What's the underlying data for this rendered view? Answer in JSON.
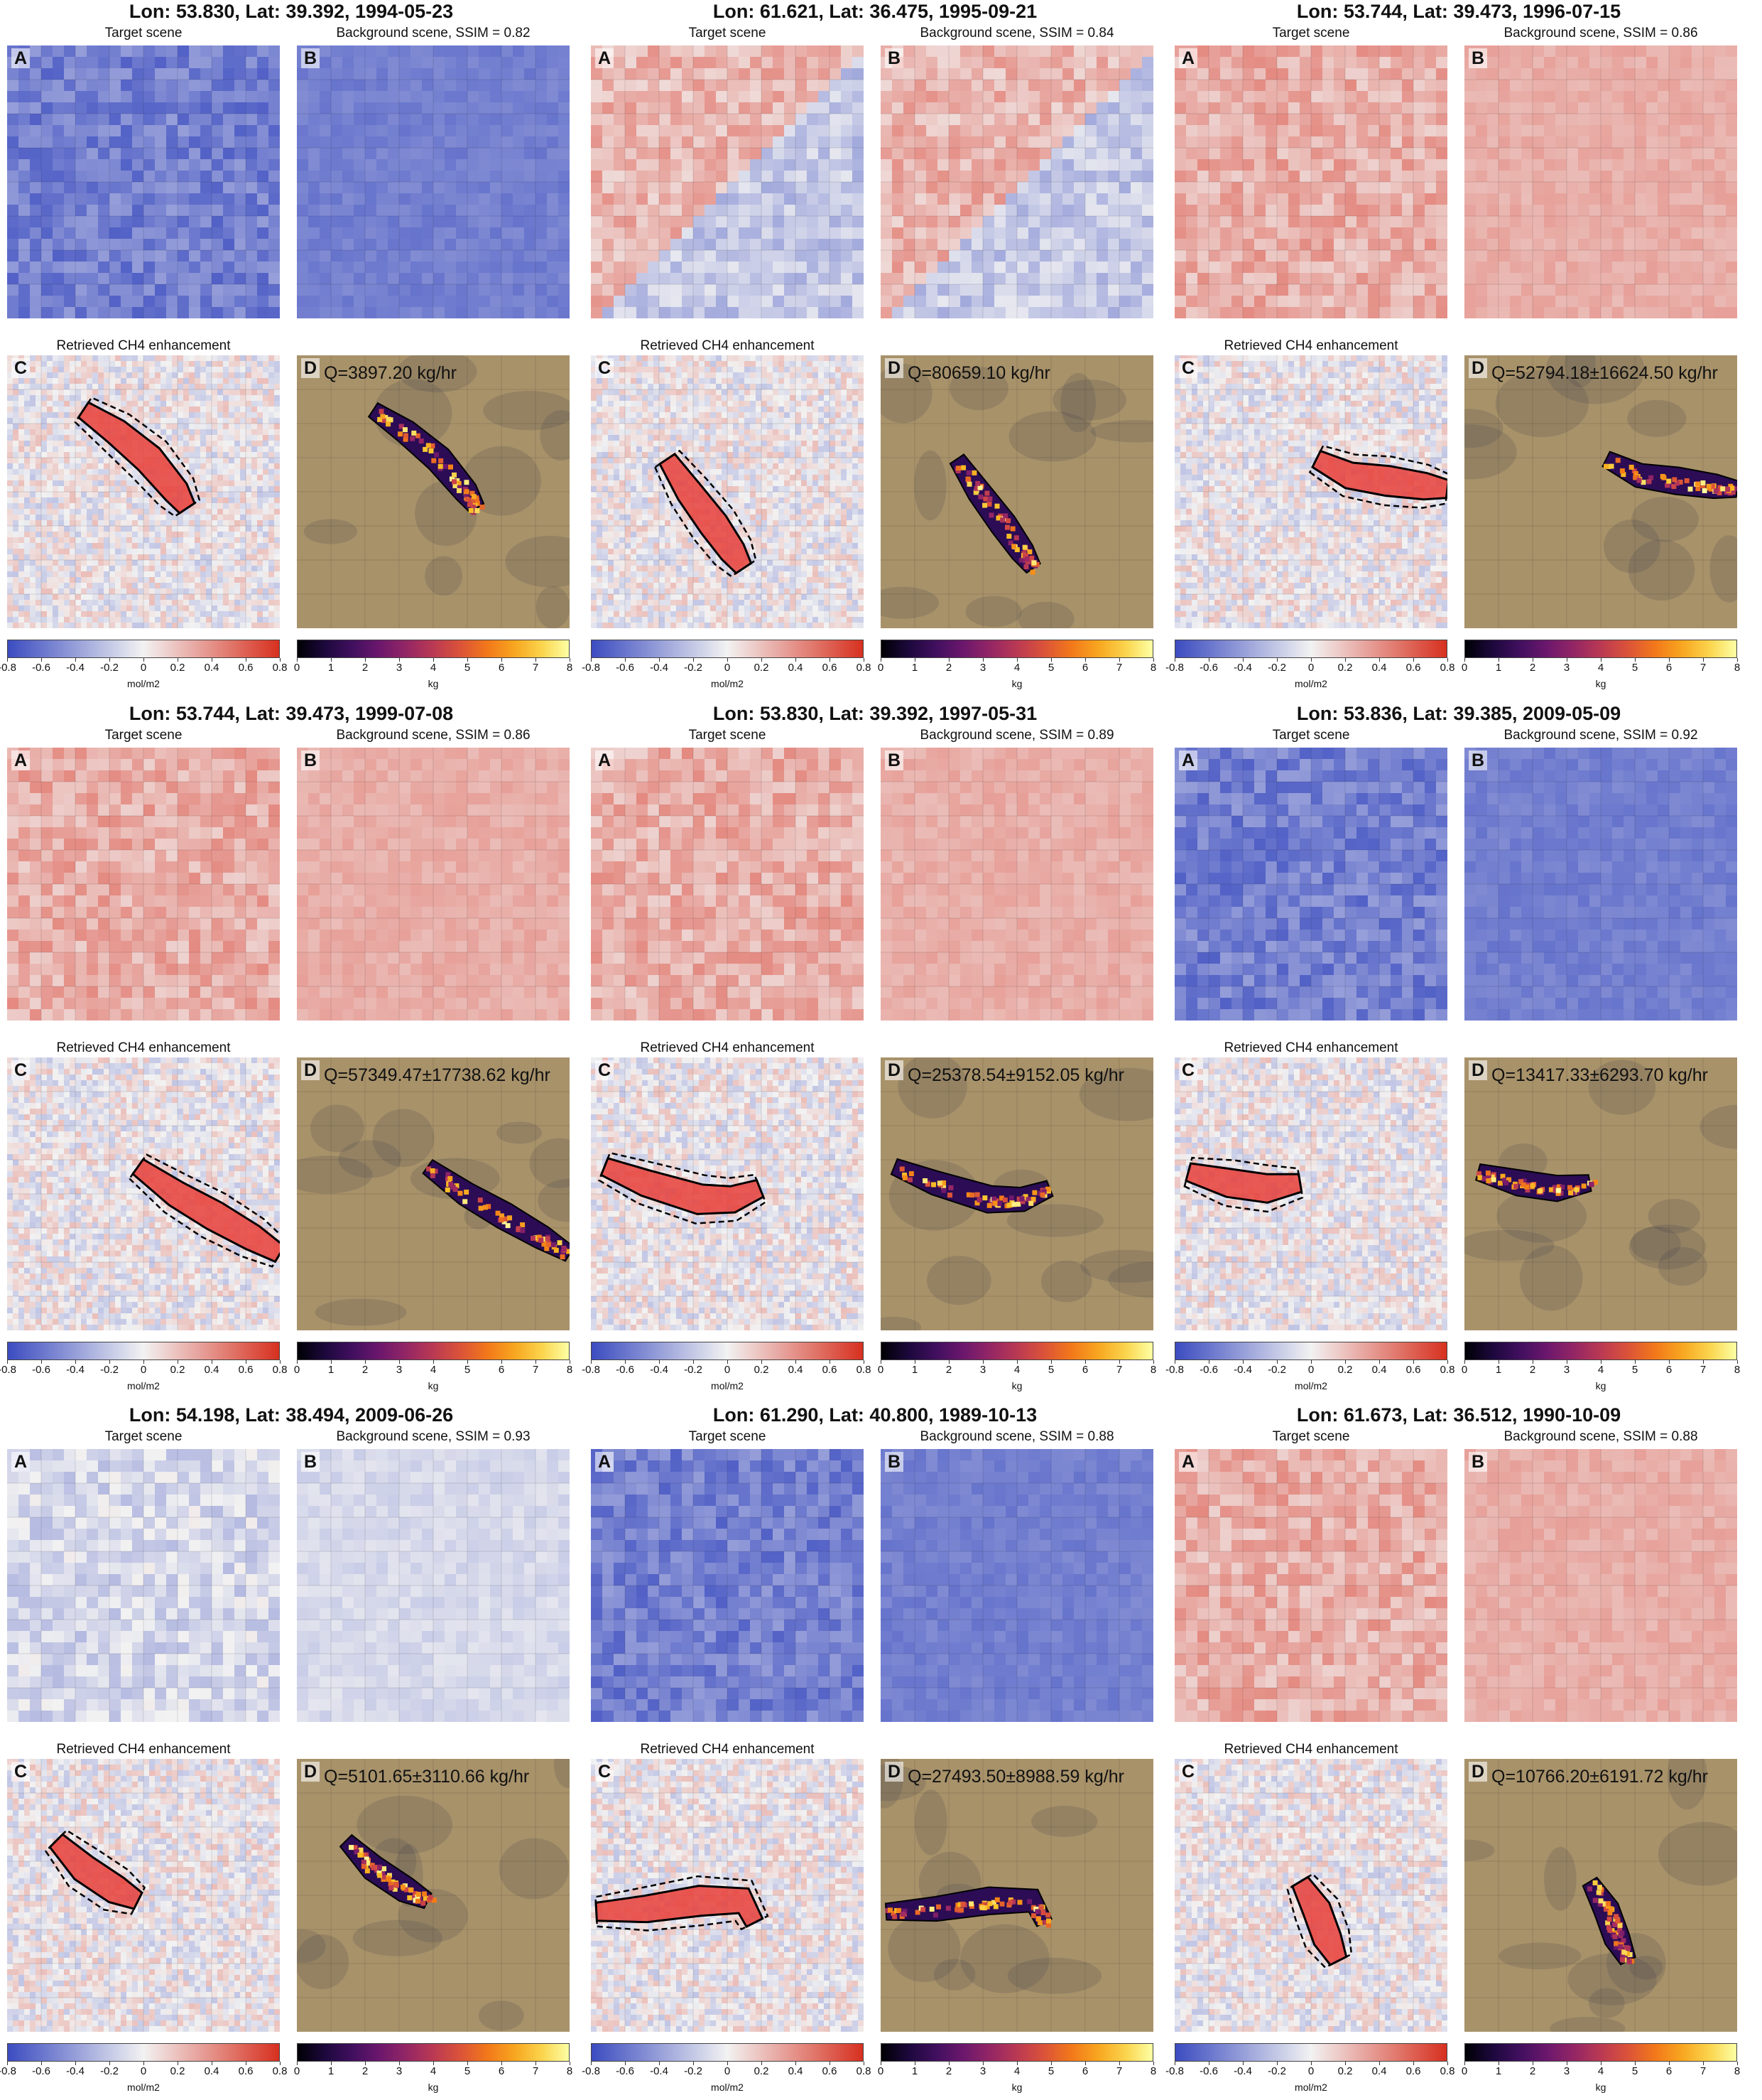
{
  "common": {
    "target_title": "Target scene",
    "retrieved_title": "Retrieved CH4 enhancement",
    "letters": [
      "A",
      "B",
      "C",
      "D"
    ],
    "colorbar_left": {
      "ticks": [
        "-0.8",
        "-0.6",
        "-0.4",
        "-0.2",
        "0",
        "0.2",
        "0.4",
        "0.6",
        "0.8"
      ],
      "unit": "mol/m2",
      "range": [
        -0.8,
        0.8
      ],
      "cmap": "coolwarm"
    },
    "colorbar_right": {
      "ticks": [
        "0",
        "1",
        "2",
        "3",
        "4",
        "5",
        "6",
        "7",
        "8"
      ],
      "unit": "kg",
      "range": [
        0,
        8
      ],
      "cmap": "inferno"
    },
    "colors": {
      "cool": "#3b4cc0",
      "warm": "#d7301f",
      "neutral": "#f2f2f2",
      "desert": "#a8926a",
      "plume_outline": "#000000"
    }
  },
  "chart_data": [
    {
      "type": "heatmap",
      "title": "Lon: 53.830, Lat: 39.392, 1994-05-23",
      "background_title": "Background scene, SSIM = 0.82",
      "ssim": 0.82,
      "q_label": "Q=3897.20 kg/hr",
      "emission_kg_hr": 3897.2,
      "scene_tone": "cool"
    },
    {
      "type": "heatmap",
      "title": "Lon: 61.621, Lat: 36.475, 1995-09-21",
      "background_title": "Background scene, SSIM = 0.84",
      "ssim": 0.84,
      "q_label": "Q=80659.10 kg/hr",
      "emission_kg_hr": 80659.1,
      "scene_tone": "mixed"
    },
    {
      "type": "heatmap",
      "title": "Lon: 53.744, Lat: 39.473, 1996-07-15",
      "background_title": "Background scene, SSIM = 0.86",
      "ssim": 0.86,
      "q_label": "Q=52794.18±16624.50 kg/hr",
      "emission_kg_hr": 52794.18,
      "uncertainty_kg_hr": 16624.5,
      "scene_tone": "warm"
    },
    {
      "type": "heatmap",
      "title": "Lon: 53.744, Lat: 39.473, 1999-07-08",
      "background_title": "Background scene, SSIM = 0.86",
      "ssim": 0.86,
      "q_label": "Q=57349.47±17738.62 kg/hr",
      "emission_kg_hr": 57349.47,
      "uncertainty_kg_hr": 17738.62,
      "scene_tone": "warm"
    },
    {
      "type": "heatmap",
      "title": "Lon: 53.830, Lat: 39.392, 1997-05-31",
      "background_title": "Background scene, SSIM = 0.89",
      "ssim": 0.89,
      "q_label": "Q=25378.54±9152.05 kg/hr",
      "emission_kg_hr": 25378.54,
      "uncertainty_kg_hr": 9152.05,
      "scene_tone": "warm"
    },
    {
      "type": "heatmap",
      "title": "Lon: 53.836, Lat: 39.385, 2009-05-09",
      "background_title": "Background scene, SSIM = 0.92",
      "ssim": 0.92,
      "q_label": "Q=13417.33±6293.70 kg/hr",
      "emission_kg_hr": 13417.33,
      "uncertainty_kg_hr": 6293.7,
      "scene_tone": "cool"
    },
    {
      "type": "heatmap",
      "title": "Lon: 54.198, Lat: 38.494, 2009-06-26",
      "background_title": "Background scene, SSIM = 0.93",
      "ssim": 0.93,
      "q_label": "Q=5101.65±3110.66 kg/hr",
      "emission_kg_hr": 5101.65,
      "uncertainty_kg_hr": 3110.66,
      "scene_tone": "light"
    },
    {
      "type": "heatmap",
      "title": "Lon: 61.290, Lat: 40.800, 1989-10-13",
      "background_title": "Background scene, SSIM = 0.88",
      "ssim": 0.88,
      "q_label": "Q=27493.50±8988.59 kg/hr",
      "emission_kg_hr": 27493.5,
      "uncertainty_kg_hr": 8988.59,
      "scene_tone": "cool"
    },
    {
      "type": "heatmap",
      "title": "Lon: 61.673, Lat: 36.512, 1990-10-09",
      "background_title": "Background scene, SSIM = 0.88",
      "ssim": 0.88,
      "q_label": "Q=10766.20±6191.72 kg/hr",
      "emission_kg_hr": 10766.2,
      "uncertainty_kg_hr": 6191.72,
      "scene_tone": "warm"
    }
  ]
}
